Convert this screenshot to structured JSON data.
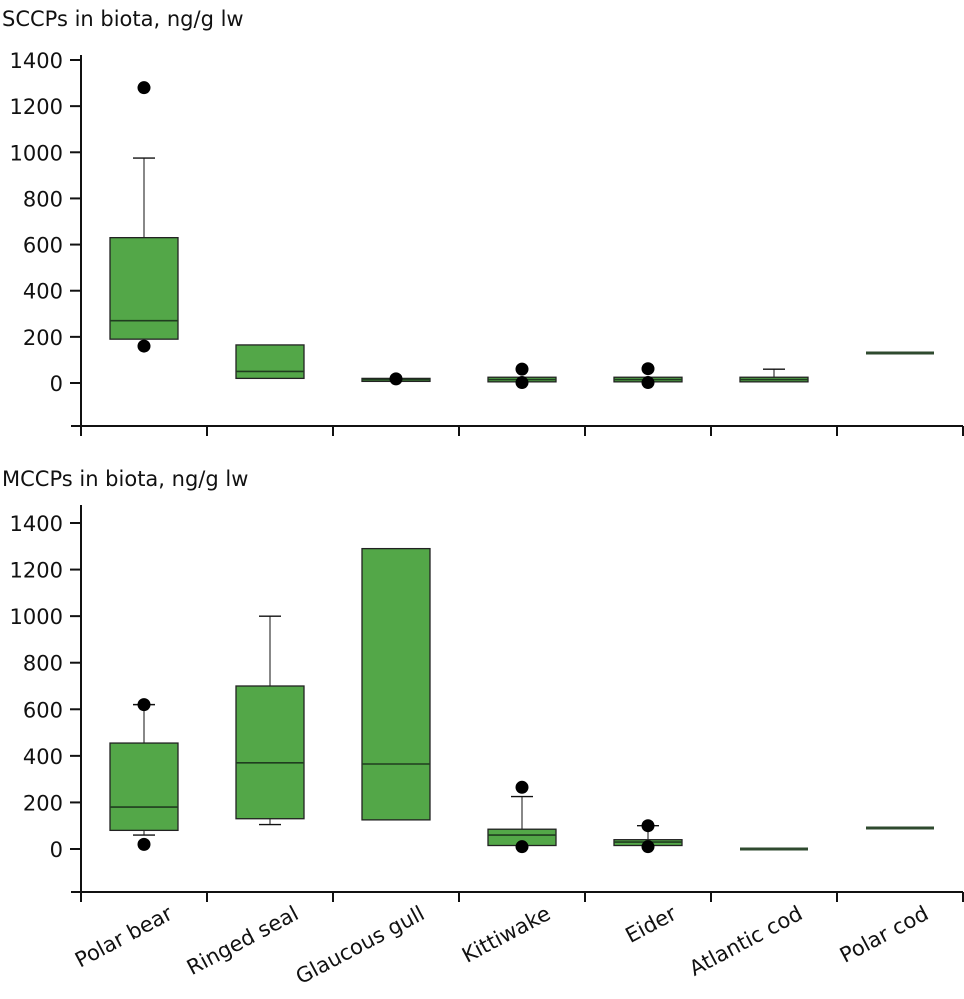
{
  "chart_data": [
    {
      "type": "box",
      "title": "SCCPs in biota, ng/g lw",
      "xlabel": "",
      "ylabel": "",
      "ylim": [
        -200,
        1400
      ],
      "yticks": [
        0,
        200,
        400,
        600,
        800,
        1000,
        1200,
        1400
      ],
      "grid": false,
      "box_color": "#53a748",
      "categories": [
        "Polar bear",
        "Ringed seal",
        "Glaucous gull",
        "Kittiwake",
        "Eider",
        "Atlantic cod",
        "Polar cod"
      ],
      "boxes": [
        {
          "category": "Polar bear",
          "q1": 190,
          "median": 270,
          "q3": 630,
          "whisker_low": null,
          "whisker_high": 975,
          "outliers": [
            1280,
            160
          ]
        },
        {
          "category": "Ringed seal",
          "q1": 20,
          "median": 50,
          "q3": 165,
          "whisker_low": null,
          "whisker_high": null,
          "outliers": []
        },
        {
          "category": "Glaucous gull",
          "q1": 12,
          "median": 15,
          "q3": 20,
          "whisker_low": null,
          "whisker_high": null,
          "outliers": [
            18
          ]
        },
        {
          "category": "Kittiwake",
          "q1": 5,
          "median": 15,
          "q3": 25,
          "whisker_low": null,
          "whisker_high": null,
          "outliers": [
            60,
            2
          ]
        },
        {
          "category": "Eider",
          "q1": 5,
          "median": 15,
          "q3": 25,
          "whisker_low": null,
          "whisker_high": null,
          "outliers": [
            62,
            2
          ]
        },
        {
          "category": "Atlantic cod",
          "q1": 5,
          "median": 15,
          "q3": 25,
          "whisker_low": null,
          "whisker_high": 60,
          "outliers": []
        },
        {
          "category": "Polar cod",
          "q1": 130,
          "median": 130,
          "q3": 130,
          "whisker_low": null,
          "whisker_high": null,
          "outliers": []
        }
      ]
    },
    {
      "type": "box",
      "title": "MCCPs in biota, ng/g lw",
      "xlabel": "",
      "ylabel": "",
      "ylim": [
        -200,
        1400
      ],
      "yticks": [
        0,
        200,
        400,
        600,
        800,
        1000,
        1200,
        1400
      ],
      "grid": false,
      "box_color": "#53a748",
      "categories": [
        "Polar bear",
        "Ringed seal",
        "Glaucous gull",
        "Kittiwake",
        "Eider",
        "Atlantic cod",
        "Polar cod"
      ],
      "boxes": [
        {
          "category": "Polar bear",
          "q1": 80,
          "median": 180,
          "q3": 455,
          "whisker_low": 60,
          "whisker_high": 620,
          "outliers": [
            620,
            20
          ]
        },
        {
          "category": "Ringed seal",
          "q1": 130,
          "median": 370,
          "q3": 700,
          "whisker_low": 105,
          "whisker_high": 1000,
          "outliers": []
        },
        {
          "category": "Glaucous gull",
          "q1": 125,
          "median": 365,
          "q3": 1290,
          "whisker_low": null,
          "whisker_high": null,
          "outliers": []
        },
        {
          "category": "Kittiwake",
          "q1": 15,
          "median": 60,
          "q3": 85,
          "whisker_low": null,
          "whisker_high": 225,
          "outliers": [
            265,
            10
          ]
        },
        {
          "category": "Eider",
          "q1": 15,
          "median": 30,
          "q3": 40,
          "whisker_low": null,
          "whisker_high": 100,
          "outliers": [
            100,
            10
          ]
        },
        {
          "category": "Atlantic cod",
          "q1": 0,
          "median": 0,
          "q3": 0,
          "whisker_low": null,
          "whisker_high": null,
          "outliers": []
        },
        {
          "category": "Polar cod",
          "q1": 90,
          "median": 90,
          "q3": 90,
          "whisker_low": null,
          "whisker_high": null,
          "outliers": []
        }
      ]
    }
  ]
}
